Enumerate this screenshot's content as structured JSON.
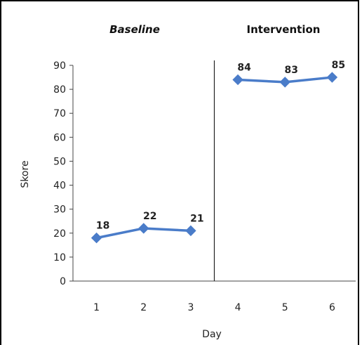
{
  "chart_data": {
    "type": "line",
    "x": [
      1,
      2,
      3,
      4,
      5,
      6
    ],
    "phases": [
      {
        "name": "Baseline",
        "x": [
          1,
          2,
          3
        ],
        "values": [
          18,
          22,
          21
        ]
      },
      {
        "name": "Intervention",
        "x": [
          4,
          5,
          6
        ],
        "values": [
          84,
          83,
          85
        ]
      }
    ],
    "xlabel": "Day",
    "ylabel": "Skore",
    "ylim": [
      0,
      90
    ],
    "yticks": [
      0,
      10,
      20,
      30,
      40,
      50,
      60,
      70,
      80,
      90
    ],
    "xticks": [
      1,
      2,
      3,
      4,
      5,
      6
    ],
    "phase_change_between": [
      3,
      4
    ],
    "grid": false,
    "series_color": "#4a7cc9"
  }
}
